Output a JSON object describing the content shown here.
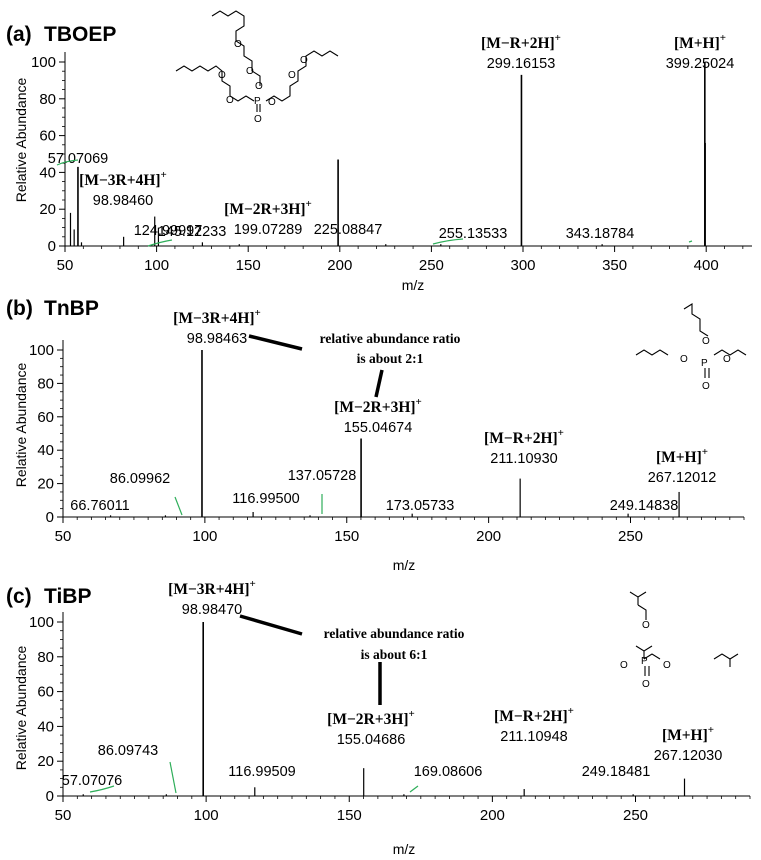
{
  "chart_data": [
    {
      "type": "bar",
      "panel_label": "(a)",
      "compound": "TBOEP",
      "xlabel": "m/z",
      "ylabel": "Relative Abundance",
      "xlim": [
        50,
        425
      ],
      "ylim": [
        0,
        100
      ],
      "xticks": [
        50,
        100,
        150,
        200,
        250,
        300,
        350,
        400
      ],
      "yticks": [
        0,
        20,
        40,
        60,
        80,
        100
      ],
      "peaks": [
        {
          "x": 53.0,
          "y": 18
        },
        {
          "x": 55.0,
          "y": 9
        },
        {
          "x": 57.07,
          "y": 43
        },
        {
          "x": 59.0,
          "y": 2
        },
        {
          "x": 82.0,
          "y": 5
        },
        {
          "x": 98.98,
          "y": 16
        },
        {
          "x": 101.0,
          "y": 10
        },
        {
          "x": 125.0,
          "y": 2
        },
        {
          "x": 145.12,
          "y": 1
        },
        {
          "x": 199.07,
          "y": 47
        },
        {
          "x": 225.09,
          "y": 1
        },
        {
          "x": 255.14,
          "y": 1
        },
        {
          "x": 299.16,
          "y": 93
        },
        {
          "x": 343.19,
          "y": 1
        },
        {
          "x": 399.25,
          "y": 100
        },
        {
          "x": 399.4,
          "y": 56
        }
      ],
      "peak_labels": [
        {
          "x": 57.07,
          "y": 43,
          "text": "57.07069"
        },
        {
          "x": 98.98,
          "y": 16,
          "text": "98.98460",
          "ion": "[M−3R+4H]",
          "charge": "+"
        },
        {
          "x": 125.0,
          "y": 2,
          "text": "124.99997"
        },
        {
          "x": 145.12,
          "y": 1,
          "text": "145.12233"
        },
        {
          "x": 199.07,
          "y": 47,
          "text": "199.07289",
          "ion": "[M−2R+3H]",
          "charge": "+"
        },
        {
          "x": 225.09,
          "y": 1,
          "text": "225.08847"
        },
        {
          "x": 255.14,
          "y": 1,
          "text": "255.13533"
        },
        {
          "x": 299.16,
          "y": 93,
          "text": "299.16153",
          "ion": "[M−R+2H]",
          "charge": "+"
        },
        {
          "x": 343.19,
          "y": 1,
          "text": "343.18784"
        },
        {
          "x": 399.25,
          "y": 100,
          "text": "399.25024",
          "ion": "[M+H]",
          "charge": "+"
        }
      ]
    },
    {
      "type": "bar",
      "panel_label": "(b)",
      "compound": "TnBP",
      "xlabel": "m/z",
      "ylabel": "Relative Abundance",
      "xlim": [
        50,
        290
      ],
      "ylim": [
        0,
        100
      ],
      "xticks": [
        50,
        100,
        150,
        200,
        250
      ],
      "yticks": [
        0,
        20,
        40,
        60,
        80,
        100
      ],
      "peaks": [
        {
          "x": 66.76,
          "y": 1
        },
        {
          "x": 86.1,
          "y": 1
        },
        {
          "x": 98.98,
          "y": 100
        },
        {
          "x": 117.0,
          "y": 3
        },
        {
          "x": 137.06,
          "y": 1
        },
        {
          "x": 155.05,
          "y": 47
        },
        {
          "x": 173.06,
          "y": 2
        },
        {
          "x": 211.11,
          "y": 23
        },
        {
          "x": 249.15,
          "y": 2
        },
        {
          "x": 267.12,
          "y": 15
        }
      ],
      "peak_labels": [
        {
          "x": 66.76,
          "y": 1,
          "text": "66.76011"
        },
        {
          "x": 86.1,
          "y": 1,
          "text": "86.09962"
        },
        {
          "x": 98.98,
          "y": 100,
          "text": "98.98463",
          "ion": "[M−3R+4H]",
          "charge": "+"
        },
        {
          "x": 117.0,
          "y": 3,
          "text": "116.99500"
        },
        {
          "x": 137.06,
          "y": 1,
          "text": "137.05728"
        },
        {
          "x": 155.05,
          "y": 47,
          "text": "155.04674",
          "ion": "[M−2R+3H]",
          "charge": "+"
        },
        {
          "x": 173.06,
          "y": 2,
          "text": "173.05733"
        },
        {
          "x": 211.11,
          "y": 23,
          "text": "211.10930",
          "ion": "[M−R+2H]",
          "charge": "+"
        },
        {
          "x": 249.15,
          "y": 2,
          "text": "249.14838"
        },
        {
          "x": 267.12,
          "y": 15,
          "text": "267.12012",
          "ion": "[M+H]",
          "charge": "+"
        }
      ],
      "annotation": [
        "relative abundance ratio",
        "is about 2:1"
      ]
    },
    {
      "type": "bar",
      "panel_label": "(c)",
      "compound": "TiBP",
      "xlabel": "m/z",
      "ylabel": "Relative Abundance",
      "xlim": [
        50,
        290
      ],
      "ylim": [
        0,
        100
      ],
      "xticks": [
        50,
        100,
        150,
        200,
        250
      ],
      "yticks": [
        0,
        20,
        40,
        60,
        80,
        100
      ],
      "peaks": [
        {
          "x": 57.07,
          "y": 1
        },
        {
          "x": 86.1,
          "y": 1
        },
        {
          "x": 98.98,
          "y": 100
        },
        {
          "x": 117.0,
          "y": 5
        },
        {
          "x": 155.05,
          "y": 16
        },
        {
          "x": 169.09,
          "y": 1
        },
        {
          "x": 211.11,
          "y": 4
        },
        {
          "x": 249.18,
          "y": 1
        },
        {
          "x": 267.12,
          "y": 10
        }
      ],
      "peak_labels": [
        {
          "x": 57.07,
          "y": 1,
          "text": "57.07076"
        },
        {
          "x": 86.1,
          "y": 1,
          "text": "86.09743"
        },
        {
          "x": 98.98,
          "y": 100,
          "text": "98.98470",
          "ion": "[M−3R+4H]",
          "charge": "+"
        },
        {
          "x": 117.0,
          "y": 5,
          "text": "116.99509"
        },
        {
          "x": 155.05,
          "y": 16,
          "text": "155.04686",
          "ion": "[M−2R+3H]",
          "charge": "+"
        },
        {
          "x": 169.09,
          "y": 1,
          "text": "169.08606"
        },
        {
          "x": 211.11,
          "y": 4,
          "text": "211.10948",
          "ion": "[M−R+2H]",
          "charge": "+"
        },
        {
          "x": 249.18,
          "y": 1,
          "text": "249.18481"
        },
        {
          "x": 267.12,
          "y": 10,
          "text": "267.12030",
          "ion": "[M+H]",
          "charge": "+"
        }
      ],
      "annotation": [
        "relative abundance ratio",
        "is about 6:1"
      ]
    }
  ]
}
